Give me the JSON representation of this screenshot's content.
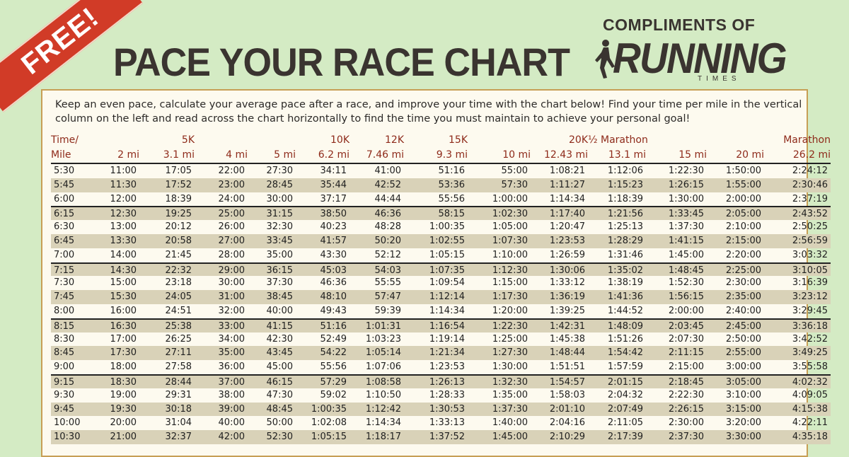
{
  "banner": "FREE!",
  "title": "PACE YOUR RACE CHART",
  "sponsor": {
    "prefix": "COMPLIMENTS OF",
    "name": "RUNNING",
    "sub": "TIMES"
  },
  "intro": "Keep an even pace, calculate your average pace after a race, and improve your time with the chart below! Find your time per mile in the vertical column on the left and read across the chart horizontally to find the time you must maintain to achieve your personal goal!",
  "columns_top": [
    "Time/",
    "",
    "5K",
    "",
    "",
    "10K",
    "12K",
    "15K",
    "",
    "20K",
    "½ Marathon",
    "",
    "",
    "Marathon"
  ],
  "columns_bottom": [
    "Mile",
    "2 mi",
    "3.1 mi",
    "4 mi",
    "5 mi",
    "6.2 mi",
    "7.46 mi",
    "9.3 mi",
    "10 mi",
    "12.43 mi",
    "13.1 mi",
    "15 mi",
    "20 mi",
    "26.2 mi"
  ],
  "rows": [
    [
      "5:30",
      "11:00",
      "17:05",
      "22:00",
      "27:30",
      "34:11",
      "41:00",
      "51:16",
      "55:00",
      "1:08:21",
      "1:12:06",
      "1:22:30",
      "1:50:00",
      "2:24:12"
    ],
    [
      "5:45",
      "11:30",
      "17:52",
      "23:00",
      "28:45",
      "35:44",
      "42:52",
      "53:36",
      "57:30",
      "1:11:27",
      "1:15:23",
      "1:26:15",
      "1:55:00",
      "2:30:46"
    ],
    [
      "6:00",
      "12:00",
      "18:39",
      "24:00",
      "30:00",
      "37:17",
      "44:44",
      "55:56",
      "1:00:00",
      "1:14:34",
      "1:18:39",
      "1:30:00",
      "2:00:00",
      "2:37:19"
    ],
    [
      "6:15",
      "12:30",
      "19:25",
      "25:00",
      "31:15",
      "38:50",
      "46:36",
      "58:15",
      "1:02:30",
      "1:17:40",
      "1:21:56",
      "1:33:45",
      "2:05:00",
      "2:43:52"
    ],
    [
      "6:30",
      "13:00",
      "20:12",
      "26:00",
      "32:30",
      "40:23",
      "48:28",
      "1:00:35",
      "1:05:00",
      "1:20:47",
      "1:25:13",
      "1:37:30",
      "2:10:00",
      "2:50:25"
    ],
    [
      "6:45",
      "13:30",
      "20:58",
      "27:00",
      "33:45",
      "41:57",
      "50:20",
      "1:02:55",
      "1:07:30",
      "1:23:53",
      "1:28:29",
      "1:41:15",
      "2:15:00",
      "2:56:59"
    ],
    [
      "7:00",
      "14:00",
      "21:45",
      "28:00",
      "35:00",
      "43:30",
      "52:12",
      "1:05:15",
      "1:10:00",
      "1:26:59",
      "1:31:46",
      "1:45:00",
      "2:20:00",
      "3:03:32"
    ],
    [
      "7:15",
      "14:30",
      "22:32",
      "29:00",
      "36:15",
      "45:03",
      "54:03",
      "1:07:35",
      "1:12:30",
      "1:30:06",
      "1:35:02",
      "1:48:45",
      "2:25:00",
      "3:10:05"
    ],
    [
      "7:30",
      "15:00",
      "23:18",
      "30:00",
      "37:30",
      "46:36",
      "55:55",
      "1:09:54",
      "1:15:00",
      "1:33:12",
      "1:38:19",
      "1:52:30",
      "2:30:00",
      "3:16:39"
    ],
    [
      "7:45",
      "15:30",
      "24:05",
      "31:00",
      "38:45",
      "48:10",
      "57:47",
      "1:12:14",
      "1:17:30",
      "1:36:19",
      "1:41:36",
      "1:56:15",
      "2:35:00",
      "3:23:12"
    ],
    [
      "8:00",
      "16:00",
      "24:51",
      "32:00",
      "40:00",
      "49:43",
      "59:39",
      "1:14:34",
      "1:20:00",
      "1:39:25",
      "1:44:52",
      "2:00:00",
      "2:40:00",
      "3:29:45"
    ],
    [
      "8:15",
      "16:30",
      "25:38",
      "33:00",
      "41:15",
      "51:16",
      "1:01:31",
      "1:16:54",
      "1:22:30",
      "1:42:31",
      "1:48:09",
      "2:03:45",
      "2:45:00",
      "3:36:18"
    ],
    [
      "8:30",
      "17:00",
      "26:25",
      "34:00",
      "42:30",
      "52:49",
      "1:03:23",
      "1:19:14",
      "1:25:00",
      "1:45:38",
      "1:51:26",
      "2:07:30",
      "2:50:00",
      "3:42:52"
    ],
    [
      "8:45",
      "17:30",
      "27:11",
      "35:00",
      "43:45",
      "54:22",
      "1:05:14",
      "1:21:34",
      "1:27:30",
      "1:48:44",
      "1:54:42",
      "2:11:15",
      "2:55:00",
      "3:49:25"
    ],
    [
      "9:00",
      "18:00",
      "27:58",
      "36:00",
      "45:00",
      "55:56",
      "1:07:06",
      "1:23:53",
      "1:30:00",
      "1:51:51",
      "1:57:59",
      "2:15:00",
      "3:00:00",
      "3:55:58"
    ],
    [
      "9:15",
      "18:30",
      "28:44",
      "37:00",
      "46:15",
      "57:29",
      "1:08:58",
      "1:26:13",
      "1:32:30",
      "1:54:57",
      "2:01:15",
      "2:18:45",
      "3:05:00",
      "4:02:32"
    ],
    [
      "9:30",
      "19:00",
      "29:31",
      "38:00",
      "47:30",
      "59:02",
      "1:10:50",
      "1:28:33",
      "1:35:00",
      "1:58:03",
      "2:04:32",
      "2:22:30",
      "3:10:00",
      "4:09:05"
    ],
    [
      "9:45",
      "19:30",
      "30:18",
      "39:00",
      "48:45",
      "1:00:35",
      "1:12:42",
      "1:30:53",
      "1:37:30",
      "2:01:10",
      "2:07:49",
      "2:26:15",
      "3:15:00",
      "4:15:38"
    ],
    [
      "10:00",
      "20:00",
      "31:04",
      "40:00",
      "50:00",
      "1:02:08",
      "1:14:34",
      "1:33:13",
      "1:40:00",
      "2:04:16",
      "2:11:05",
      "2:30:00",
      "3:20:00",
      "4:22:11"
    ],
    [
      "10:30",
      "21:00",
      "32:37",
      "42:00",
      "52:30",
      "1:05:15",
      "1:18:17",
      "1:37:52",
      "1:45:00",
      "2:10:29",
      "2:17:39",
      "2:37:30",
      "3:30:00",
      "4:35:18"
    ]
  ]
}
